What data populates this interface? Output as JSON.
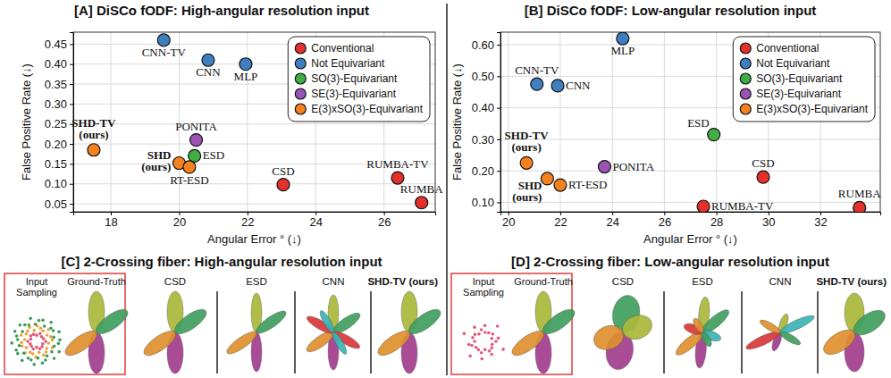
{
  "chart_data": [
    {
      "type": "scatter",
      "title": "[A] DiSCo fODF: High-angular resolution input",
      "x_label": "Angular Error ° (↓)",
      "y_label": "False Positive Rate (↓)",
      "xlim": [
        16.9,
        27.5
      ],
      "xticks": [
        18,
        20,
        22,
        24,
        26
      ],
      "ylim": [
        0.03,
        0.48
      ],
      "yticks": [
        0.05,
        {
          "value": 0.1,
          "label": "0.10"
        },
        0.15,
        {
          "value": 0.2,
          "label": "0.20"
        },
        0.25,
        {
          "value": 0.3,
          "label": "0.30"
        },
        0.35,
        {
          "value": 0.4,
          "label": "0.40"
        },
        0.45
      ],
      "grid": true,
      "legend": "upper right",
      "marker": "circle",
      "series": [
        {
          "name": "Conventional",
          "color": "#e4302b",
          "labels": [
            "CSD",
            "RUMBA-TV",
            "RUMBA"
          ],
          "x": [
            23.05,
            26.4,
            27.1
          ],
          "values": [
            0.098,
            0.115,
            0.053
          ]
        },
        {
          "name": "Not Equivariant",
          "color": "#3f7fc0",
          "labels": [
            "CNN-TV",
            "CNN",
            "MLP"
          ],
          "x": [
            19.55,
            20.85,
            21.95
          ],
          "values": [
            0.46,
            0.41,
            0.4
          ]
        },
        {
          "name": "SO(3)-Equivariant",
          "color": "#3fae45",
          "labels": [
            "ESD"
          ],
          "x": [
            20.45
          ],
          "values": [
            0.17
          ]
        },
        {
          "name": "SE(3)-Equivariant",
          "color": "#9b54b6",
          "labels": [
            "PONITA"
          ],
          "x": [
            20.5
          ],
          "values": [
            0.21
          ]
        },
        {
          "name": "E(3)xSO(3)-Equivariant",
          "color": "#f5821f",
          "labels": [
            "SHD-TV (ours)",
            "SHD (ours)",
            "RT-ESD"
          ],
          "x": [
            17.5,
            20.0,
            20.3
          ],
          "values": [
            0.185,
            0.152,
            0.142
          ]
        }
      ]
    },
    {
      "type": "scatter",
      "title": "[B] DiSCo fODF: Low-angular resolution input",
      "x_label": "Angular Error ° (↓)",
      "y_label": "False Positive Rate (↓)",
      "xlim": [
        19.7,
        34.3
      ],
      "xticks": [
        20,
        22,
        24,
        26,
        28,
        30,
        32
      ],
      "ylim": [
        0.07,
        0.64
      ],
      "yticks": [
        {
          "value": 0.1,
          "label": "0.10"
        },
        {
          "value": 0.2,
          "label": "0.20"
        },
        {
          "value": 0.3,
          "label": "0.30"
        },
        {
          "value": 0.4,
          "label": "0.40"
        },
        {
          "value": 0.5,
          "label": "0.50"
        },
        {
          "value": 0.6,
          "label": "0.60"
        }
      ],
      "grid": true,
      "legend": "upper right",
      "marker": "circle",
      "series": [
        {
          "name": "Conventional",
          "color": "#e4302b",
          "labels": [
            "CSD",
            "RUMBA-TV",
            "RUMBA"
          ],
          "x": [
            29.8,
            27.5,
            33.5
          ],
          "values": [
            0.18,
            0.087,
            0.083
          ]
        },
        {
          "name": "Not Equivariant",
          "color": "#3f7fc0",
          "labels": [
            "MLP",
            "CNN-TV",
            "CNN"
          ],
          "x": [
            24.4,
            21.1,
            21.9
          ],
          "values": [
            0.62,
            0.475,
            0.47
          ]
        },
        {
          "name": "SO(3)-Equivariant",
          "color": "#3fae45",
          "labels": [
            "ESD"
          ],
          "x": [
            27.9
          ],
          "values": [
            0.315
          ]
        },
        {
          "name": "SE(3)-Equivariant",
          "color": "#9b54b6",
          "labels": [
            "PONITA"
          ],
          "x": [
            23.7
          ],
          "values": [
            0.213
          ]
        },
        {
          "name": "E(3)xSO(3)-Equivariant",
          "color": "#f5821f",
          "labels": [
            "SHD-TV (ours)",
            "SHD (ours)",
            "RT-ESD"
          ],
          "x": [
            20.7,
            21.5,
            22.0
          ],
          "values": [
            0.225,
            0.175,
            0.155
          ]
        }
      ]
    }
  ],
  "glyph_panels": [
    {
      "title": "[C] 2-Crossing fiber: High-angular resolution input",
      "input_label": "Input Sampling",
      "truth_label": "Ground-Truth",
      "methods": [
        "CSD",
        "ESD",
        "CNN",
        "SHD-TV (ours)"
      ]
    },
    {
      "title": "[D] 2-Crossing fiber: Low-angular resolution input",
      "input_label": "Input Sampling",
      "truth_label": "Ground-Truth",
      "methods": [
        "CSD",
        "ESD",
        "CNN",
        "SHD-TV (ours)"
      ]
    }
  ]
}
